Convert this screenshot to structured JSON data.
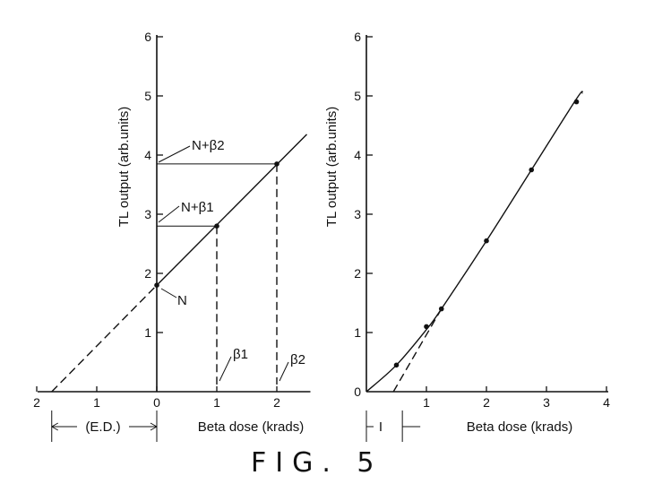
{
  "figure_label": "FIG. 5",
  "chart_data": [
    {
      "type": "line",
      "title": "",
      "xlabel": "Beta dose (krads)",
      "ylabel": "TL output (arb.units)",
      "x_tick_labels": [
        "2",
        "1",
        "0",
        "1",
        "2"
      ],
      "x_tick_values": [
        -2,
        -1,
        0,
        1,
        2
      ],
      "y_ticks": [
        1,
        2,
        3,
        4,
        5,
        6
      ],
      "xlim": [
        -2,
        2.5
      ],
      "ylim": [
        0,
        6
      ],
      "grid": false,
      "points": [
        {
          "x": 0,
          "y": 1.8,
          "label": "N"
        },
        {
          "x": 1,
          "y": 2.8,
          "label": "N+β1"
        },
        {
          "x": 2,
          "y": 3.85,
          "label": "N+β2"
        }
      ],
      "fit_line": {
        "x_start": -1.75,
        "x_end": 2.5,
        "slope": 1.02,
        "intercept": 1.8,
        "dashed_below_x": 0
      },
      "annotations": {
        "n": "N",
        "n_beta1": "N+β1",
        "n_beta2": "N+β2",
        "beta1": "β1",
        "beta2": "β2",
        "ed": "(E.D.)"
      }
    },
    {
      "type": "line",
      "title": "",
      "xlabel": "Beta dose (krads)",
      "ylabel": "TL output (arb.units)",
      "x_ticks": [
        0,
        1,
        2,
        3,
        4
      ],
      "y_ticks": [
        0,
        1,
        2,
        3,
        4,
        5,
        6
      ],
      "xlim": [
        0,
        4
      ],
      "ylim": [
        0,
        6
      ],
      "grid": false,
      "points": [
        {
          "x": 0.5,
          "y": 0.45
        },
        {
          "x": 1.0,
          "y": 1.1
        },
        {
          "x": 1.25,
          "y": 1.4
        },
        {
          "x": 2.0,
          "y": 2.55
        },
        {
          "x": 2.75,
          "y": 3.75
        },
        {
          "x": 3.5,
          "y": 4.9
        }
      ],
      "curve": [
        [
          0,
          0
        ],
        [
          0.5,
          0.45
        ],
        [
          1.0,
          1.05
        ],
        [
          1.25,
          1.4
        ],
        [
          2.0,
          2.55
        ],
        [
          2.75,
          3.75
        ],
        [
          3.5,
          4.95
        ],
        [
          3.6,
          5.05
        ]
      ],
      "extrapolation": {
        "x_start": 0.45,
        "y_start": 0,
        "x_end": 1.25,
        "y_end": 1.4
      },
      "annotations": {
        "intercept": "I"
      }
    }
  ]
}
